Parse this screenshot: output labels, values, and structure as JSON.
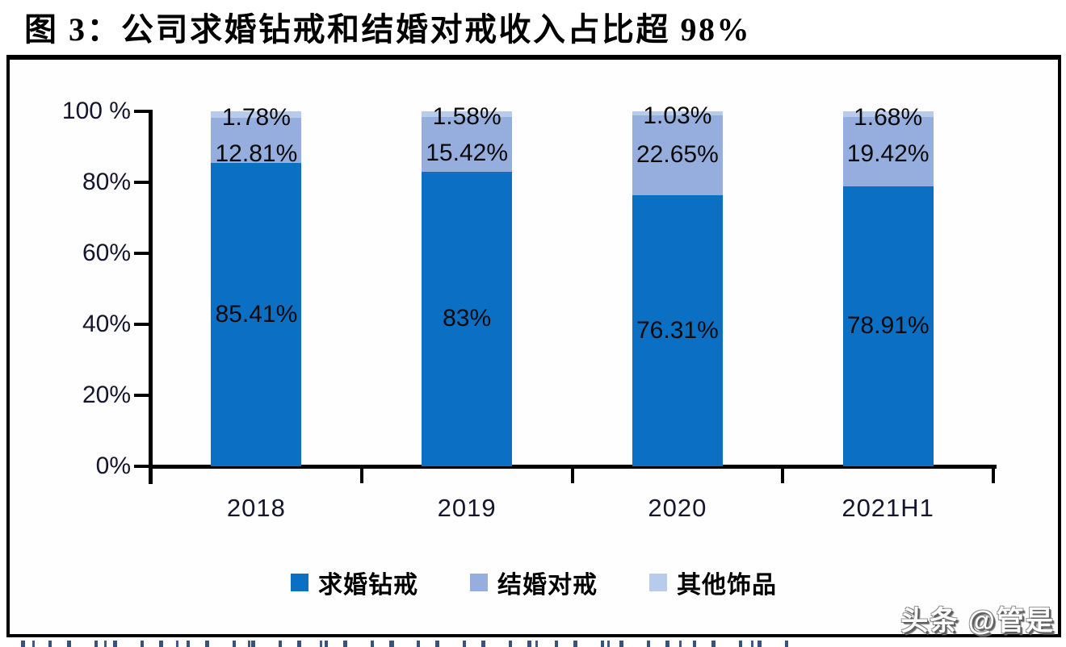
{
  "figure": {
    "title": "图 3：公司求婚钻戒和结婚对戒收入占比超 98%",
    "watermark": "头条 @管是"
  },
  "chart_data": {
    "type": "bar",
    "stacked": true,
    "title": "公司求婚钻戒和结婚对戒收入占比超 98%",
    "categories": [
      "2018",
      "2019",
      "2020",
      "2021H1"
    ],
    "series": [
      {
        "name": "求婚钻戒",
        "color": "#0B70C4",
        "values": [
          85.41,
          83,
          76.31,
          78.91
        ],
        "labels": [
          "85.41%",
          "83%",
          "76.31%",
          "78.91%"
        ]
      },
      {
        "name": "结婚对戒",
        "color": "#96AEDD",
        "values": [
          12.81,
          15.42,
          22.65,
          19.42
        ],
        "labels": [
          "12.81%",
          "15.42%",
          "22.65%",
          "19.42%"
        ]
      },
      {
        "name": "其他饰品",
        "color": "#B9CBEA",
        "values": [
          1.78,
          1.58,
          1.03,
          1.68
        ],
        "labels": [
          "1.78%",
          "1.58%",
          "1.03%",
          "1.68%"
        ]
      }
    ],
    "xlabel": "",
    "ylabel": "",
    "ylim": [
      0,
      100
    ],
    "yticks": [
      "0%",
      "20%",
      "40%",
      "60%",
      "80%",
      "100 %"
    ],
    "ytick_values": [
      0,
      20,
      40,
      60,
      80,
      100
    ],
    "grid": false,
    "legend_position": "bottom"
  }
}
